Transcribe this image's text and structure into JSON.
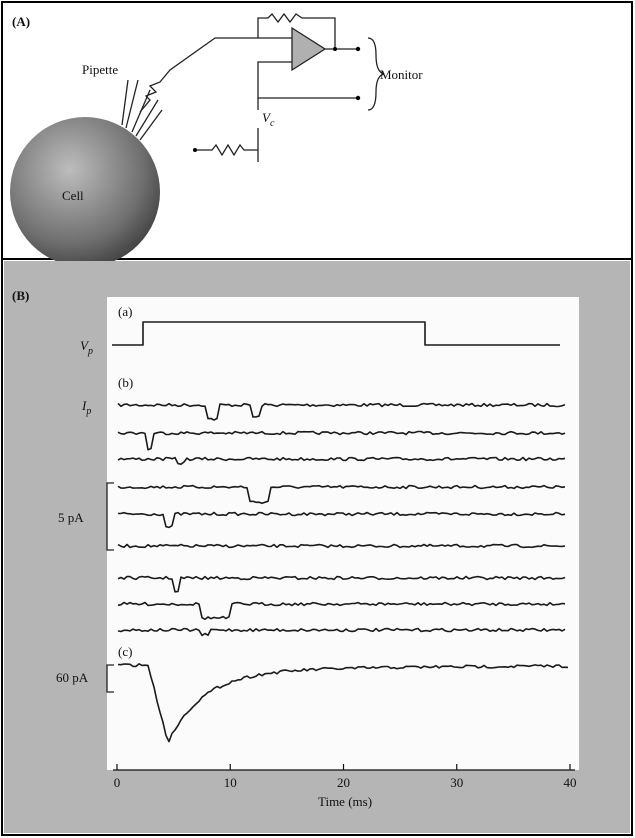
{
  "panel_a": {
    "label": "(A)",
    "pipette": "Pipette",
    "cell": "Cell",
    "monitor": "Monitor",
    "vc": {
      "symbol": "V",
      "sub": "c"
    }
  },
  "panel_b": {
    "label": "(B)",
    "a": {
      "label": "(a)",
      "symbol": "V",
      "sub": "p"
    },
    "b": {
      "label": "(b)",
      "symbol": "I",
      "sub": "p",
      "scale": "5 pA"
    },
    "c": {
      "label": "(c)",
      "scale": "60 pA"
    },
    "axis": {
      "lim": [
        0,
        40
      ],
      "ticks": [
        0,
        10,
        20,
        30,
        40
      ],
      "label": "Time (ms)"
    }
  }
}
